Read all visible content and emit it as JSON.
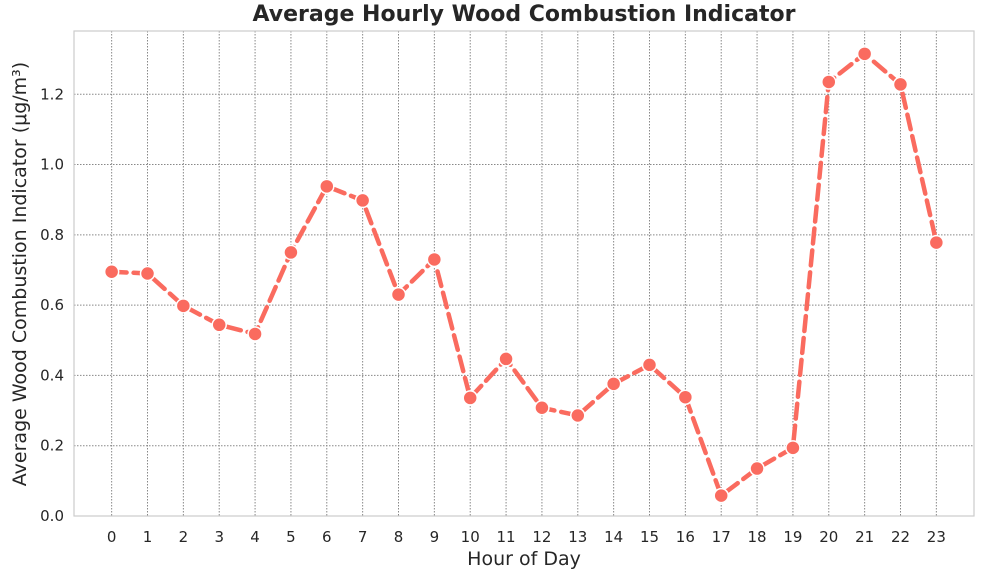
{
  "chart_data": {
    "type": "line",
    "title": "Average Hourly Wood Combustion Indicator",
    "xlabel": "Hour of Day",
    "ylabel": "Average Wood Combustion Indicator (μg/m³)",
    "x": [
      0,
      1,
      2,
      3,
      4,
      5,
      6,
      7,
      8,
      9,
      10,
      11,
      12,
      13,
      14,
      15,
      16,
      17,
      18,
      19,
      20,
      21,
      22,
      23
    ],
    "series": [
      {
        "values": [
          0.695,
          0.69,
          0.598,
          0.544,
          0.518,
          0.75,
          0.938,
          0.898,
          0.63,
          0.73,
          0.336,
          0.447,
          0.308,
          0.286,
          0.376,
          0.43,
          0.338,
          0.058,
          0.135,
          0.194,
          1.235,
          1.315,
          1.228,
          0.778
        ],
        "color": "#fa6b5f"
      }
    ],
    "xticks": [
      "0",
      "1",
      "2",
      "3",
      "4",
      "5",
      "6",
      "7",
      "8",
      "9",
      "10",
      "11",
      "12",
      "13",
      "14",
      "15",
      "16",
      "17",
      "18",
      "19",
      "20",
      "21",
      "22",
      "23"
    ],
    "yticks": [
      "0.0",
      "0.2",
      "0.4",
      "0.6",
      "0.8",
      "1.0",
      "1.2"
    ],
    "ylim": [
      0,
      1.38
    ],
    "xlim": [
      -1.05,
      24.05
    ],
    "grid": true,
    "line_style": "dashed",
    "marker": "circle"
  }
}
